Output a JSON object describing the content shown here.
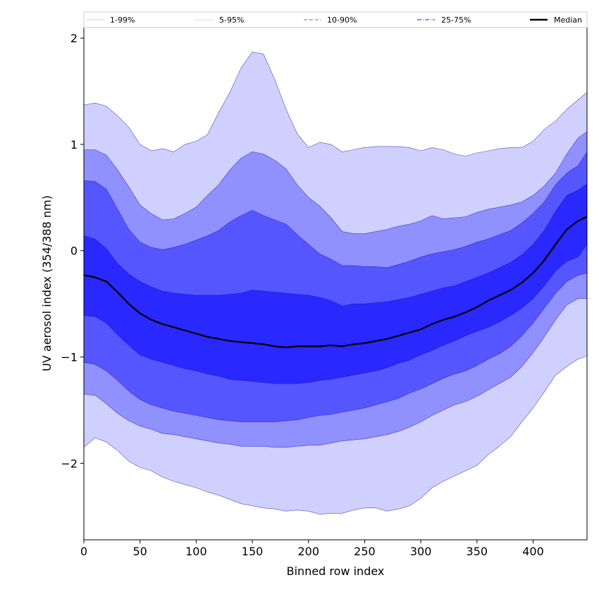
{
  "chart_data": {
    "type": "area",
    "xlabel": "Binned row index",
    "ylabel": "UV aerosol index (354/388 nm)",
    "xlim": [
      0,
      448
    ],
    "ylim": [
      -2.72,
      2.1
    ],
    "xticks": [
      0,
      50,
      100,
      150,
      200,
      250,
      300,
      350,
      400
    ],
    "xtick_labels": [
      "0",
      "50",
      "100",
      "150",
      "200",
      "250",
      "300",
      "350",
      "400"
    ],
    "yticks": [
      -2,
      -1,
      0,
      1,
      2
    ],
    "ytick_labels": [
      "−2",
      "−1",
      "0",
      "1",
      "2"
    ],
    "legend_position": "top (above plot, full width)",
    "legend": [
      {
        "label": "1-99%",
        "color": "#d0d0ff",
        "style": "solid"
      },
      {
        "label": "5-95%",
        "color": "#a0a0ff",
        "style": "dotted"
      },
      {
        "label": "10-90%",
        "color": "#8080ff",
        "style": "dashed"
      },
      {
        "label": "25-75%",
        "color": "#4040ff",
        "style": "dashdot"
      },
      {
        "label": "Median",
        "color": "#000000",
        "style": "solid"
      }
    ],
    "x": [
      0,
      10,
      20,
      30,
      40,
      50,
      60,
      70,
      80,
      90,
      100,
      110,
      120,
      130,
      140,
      150,
      160,
      170,
      180,
      190,
      200,
      210,
      220,
      230,
      240,
      250,
      260,
      270,
      280,
      290,
      300,
      310,
      320,
      330,
      340,
      350,
      360,
      370,
      380,
      390,
      400,
      410,
      420,
      430,
      440,
      448
    ],
    "bands": [
      {
        "name": "1-99%",
        "color": "#d0d0ff",
        "upper": [
          1.37,
          1.39,
          1.36,
          1.27,
          1.16,
          1.0,
          0.94,
          0.96,
          0.93,
          1.0,
          1.03,
          1.09,
          1.3,
          1.49,
          1.72,
          1.87,
          1.85,
          1.61,
          1.33,
          1.1,
          0.97,
          1.02,
          1.0,
          0.93,
          0.95,
          0.97,
          0.98,
          0.98,
          0.98,
          0.97,
          0.94,
          0.97,
          0.95,
          0.91,
          0.89,
          0.92,
          0.94,
          0.96,
          0.97,
          0.97,
          1.03,
          1.14,
          1.22,
          1.33,
          1.42,
          1.49
        ],
        "lower": [
          -1.85,
          -1.76,
          -1.8,
          -1.88,
          -1.98,
          -2.04,
          -2.07,
          -2.13,
          -2.17,
          -2.2,
          -2.23,
          -2.27,
          -2.3,
          -2.34,
          -2.38,
          -2.4,
          -2.42,
          -2.43,
          -2.45,
          -2.44,
          -2.45,
          -2.48,
          -2.47,
          -2.47,
          -2.44,
          -2.42,
          -2.42,
          -2.45,
          -2.43,
          -2.4,
          -2.33,
          -2.23,
          -2.17,
          -2.12,
          -2.07,
          -2.02,
          -1.92,
          -1.84,
          -1.75,
          -1.61,
          -1.48,
          -1.33,
          -1.17,
          -1.09,
          -1.02,
          -0.99
        ]
      },
      {
        "name": "5-95%",
        "color": "#9090ff",
        "upper": [
          0.95,
          0.95,
          0.9,
          0.76,
          0.6,
          0.43,
          0.35,
          0.29,
          0.3,
          0.35,
          0.41,
          0.52,
          0.62,
          0.76,
          0.87,
          0.93,
          0.91,
          0.85,
          0.77,
          0.62,
          0.5,
          0.42,
          0.31,
          0.18,
          0.16,
          0.16,
          0.18,
          0.2,
          0.23,
          0.25,
          0.28,
          0.33,
          0.3,
          0.31,
          0.32,
          0.36,
          0.39,
          0.41,
          0.43,
          0.46,
          0.52,
          0.61,
          0.73,
          0.91,
          1.06,
          1.12
        ],
        "lower": [
          -1.35,
          -1.36,
          -1.44,
          -1.53,
          -1.6,
          -1.65,
          -1.68,
          -1.72,
          -1.73,
          -1.75,
          -1.77,
          -1.79,
          -1.81,
          -1.82,
          -1.84,
          -1.84,
          -1.84,
          -1.85,
          -1.85,
          -1.84,
          -1.83,
          -1.83,
          -1.81,
          -1.79,
          -1.78,
          -1.77,
          -1.75,
          -1.73,
          -1.7,
          -1.66,
          -1.61,
          -1.55,
          -1.5,
          -1.45,
          -1.42,
          -1.37,
          -1.31,
          -1.25,
          -1.19,
          -1.09,
          -0.96,
          -0.81,
          -0.65,
          -0.51,
          -0.45,
          -0.45
        ]
      },
      {
        "name": "10-90%",
        "color": "#5656ff",
        "upper": [
          0.66,
          0.65,
          0.58,
          0.39,
          0.2,
          0.08,
          0.03,
          0.01,
          0.03,
          0.06,
          0.1,
          0.14,
          0.19,
          0.27,
          0.33,
          0.38,
          0.33,
          0.29,
          0.25,
          0.15,
          0.06,
          -0.03,
          -0.08,
          -0.14,
          -0.14,
          -0.15,
          -0.15,
          -0.16,
          -0.13,
          -0.1,
          -0.06,
          -0.03,
          -0.01,
          0.01,
          0.04,
          0.08,
          0.11,
          0.15,
          0.19,
          0.26,
          0.35,
          0.46,
          0.62,
          0.73,
          0.8,
          0.93
        ],
        "lower": [
          -1.05,
          -1.07,
          -1.13,
          -1.22,
          -1.32,
          -1.4,
          -1.45,
          -1.48,
          -1.51,
          -1.53,
          -1.55,
          -1.57,
          -1.59,
          -1.6,
          -1.61,
          -1.61,
          -1.61,
          -1.61,
          -1.6,
          -1.59,
          -1.57,
          -1.55,
          -1.54,
          -1.52,
          -1.5,
          -1.48,
          -1.45,
          -1.42,
          -1.39,
          -1.34,
          -1.3,
          -1.25,
          -1.2,
          -1.16,
          -1.13,
          -1.08,
          -1.02,
          -0.97,
          -0.9,
          -0.8,
          -0.68,
          -0.54,
          -0.4,
          -0.29,
          -0.23,
          -0.21
        ]
      },
      {
        "name": "25-75%",
        "color": "#2828ff",
        "upper": [
          0.14,
          0.11,
          0.02,
          -0.12,
          -0.22,
          -0.29,
          -0.34,
          -0.38,
          -0.4,
          -0.41,
          -0.42,
          -0.42,
          -0.42,
          -0.41,
          -0.4,
          -0.37,
          -0.38,
          -0.39,
          -0.4,
          -0.41,
          -0.42,
          -0.44,
          -0.47,
          -0.52,
          -0.5,
          -0.5,
          -0.49,
          -0.48,
          -0.46,
          -0.44,
          -0.41,
          -0.38,
          -0.35,
          -0.33,
          -0.29,
          -0.25,
          -0.21,
          -0.16,
          -0.11,
          -0.04,
          0.06,
          0.19,
          0.37,
          0.52,
          0.57,
          0.63
        ],
        "lower": [
          -0.61,
          -0.62,
          -0.68,
          -0.79,
          -0.89,
          -0.98,
          -1.02,
          -1.05,
          -1.08,
          -1.11,
          -1.13,
          -1.16,
          -1.18,
          -1.21,
          -1.22,
          -1.23,
          -1.24,
          -1.25,
          -1.25,
          -1.25,
          -1.24,
          -1.22,
          -1.21,
          -1.19,
          -1.17,
          -1.15,
          -1.13,
          -1.1,
          -1.06,
          -1.03,
          -0.98,
          -0.94,
          -0.89,
          -0.85,
          -0.8,
          -0.76,
          -0.72,
          -0.67,
          -0.61,
          -0.54,
          -0.45,
          -0.33,
          -0.19,
          -0.1,
          -0.06,
          0.06
        ]
      }
    ],
    "median": {
      "name": "Median",
      "color": "#000000",
      "values": [
        -0.23,
        -0.25,
        -0.29,
        -0.39,
        -0.5,
        -0.59,
        -0.65,
        -0.69,
        -0.72,
        -0.75,
        -0.78,
        -0.81,
        -0.83,
        -0.85,
        -0.86,
        -0.87,
        -0.88,
        -0.9,
        -0.91,
        -0.9,
        -0.9,
        -0.9,
        -0.89,
        -0.9,
        -0.88,
        -0.87,
        -0.85,
        -0.83,
        -0.8,
        -0.77,
        -0.74,
        -0.69,
        -0.65,
        -0.62,
        -0.58,
        -0.53,
        -0.47,
        -0.42,
        -0.37,
        -0.3,
        -0.21,
        -0.09,
        0.06,
        0.2,
        0.28,
        0.32
      ]
    }
  }
}
